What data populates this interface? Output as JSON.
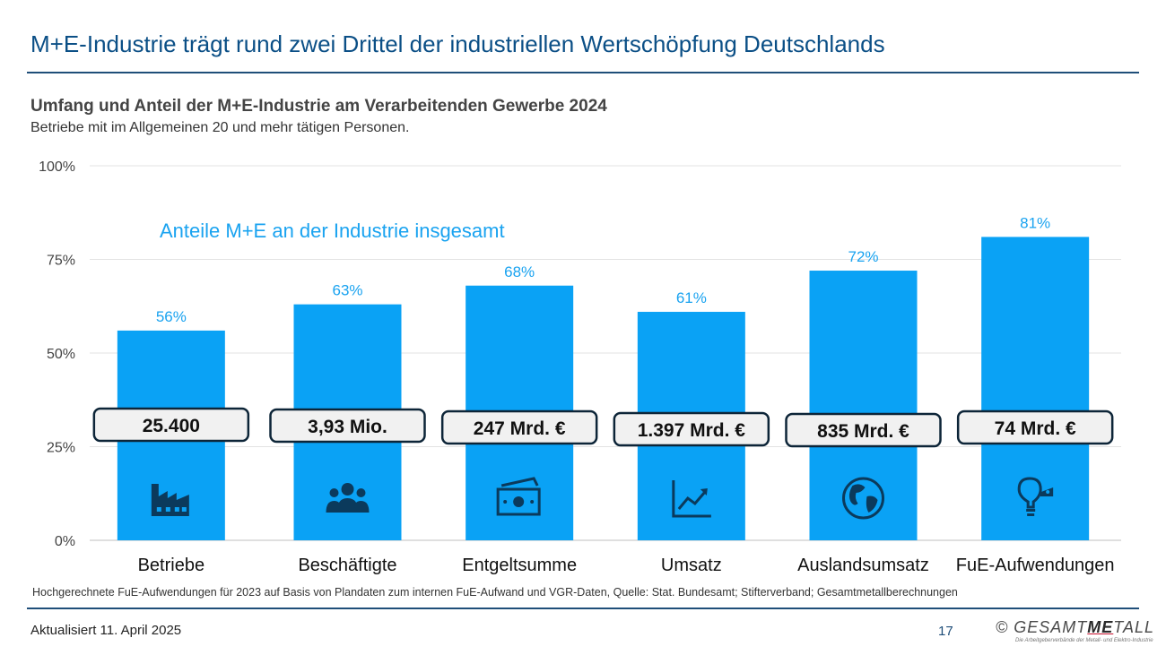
{
  "header": {
    "title": "M+E-Industrie trägt rund zwei Drittel der industriellen Wertschöpfung Deutschlands",
    "subtitle": "Umfang und Anteil der M+E-Industrie am Verarbeitenden Gewerbe 2024",
    "subtitle2": "Betriebe mit im Allgemeinen 20 und mehr tätigen Personen."
  },
  "chart_data": {
    "type": "bar",
    "categories": [
      "Betriebe",
      "Beschäftigte",
      "Entgeltsumme",
      "Umsatz",
      "Auslandsumsatz",
      "FuE-Aufwendungen"
    ],
    "values": [
      56,
      63,
      68,
      61,
      72,
      81
    ],
    "value_labels": [
      "56%",
      "63%",
      "68%",
      "61%",
      "72%",
      "81%"
    ],
    "box_labels": [
      "25.400",
      "3,93 Mio.",
      "247 Mrd. €",
      "1.397 Mrd. €",
      "835 Mrd. €",
      "74 Mrd. €"
    ],
    "icons": [
      "factory-icon",
      "people-icon",
      "money-icon",
      "chart-up-icon",
      "globe-icon",
      "lightbulb-icon"
    ],
    "annotation": "Anteile M+E an der Industrie insgesamt",
    "yticks": [
      0,
      25,
      50,
      75,
      100
    ],
    "ytick_labels": [
      "0%",
      "25%",
      "50%",
      "75%",
      "100%"
    ],
    "ylim": [
      0,
      100
    ],
    "grid": true,
    "colors": {
      "bar": "#0aa2f5",
      "value_label": "#1aa3f0",
      "box_fill": "#f1f1f1",
      "box_border": "#0d2538",
      "icon": "#0b3a5c"
    }
  },
  "footer": {
    "note": "Hochgerechnete FuE-Aufwendungen für 2023 auf Basis von Plandaten zum internen FuE-Aufwand und VGR-Daten, Quelle: Stat. Bundesamt; Stifterverband; Gesamtmetallberechnungen",
    "updated": "Aktualisiert 11. April 2025",
    "page": "17",
    "logo_prefix": "© GESAMT",
    "logo_me": "ME",
    "logo_suffix": "TALL",
    "logo_tagline": "Die Arbeitgeberverbände der Metall- und Elektro-Industrie"
  }
}
